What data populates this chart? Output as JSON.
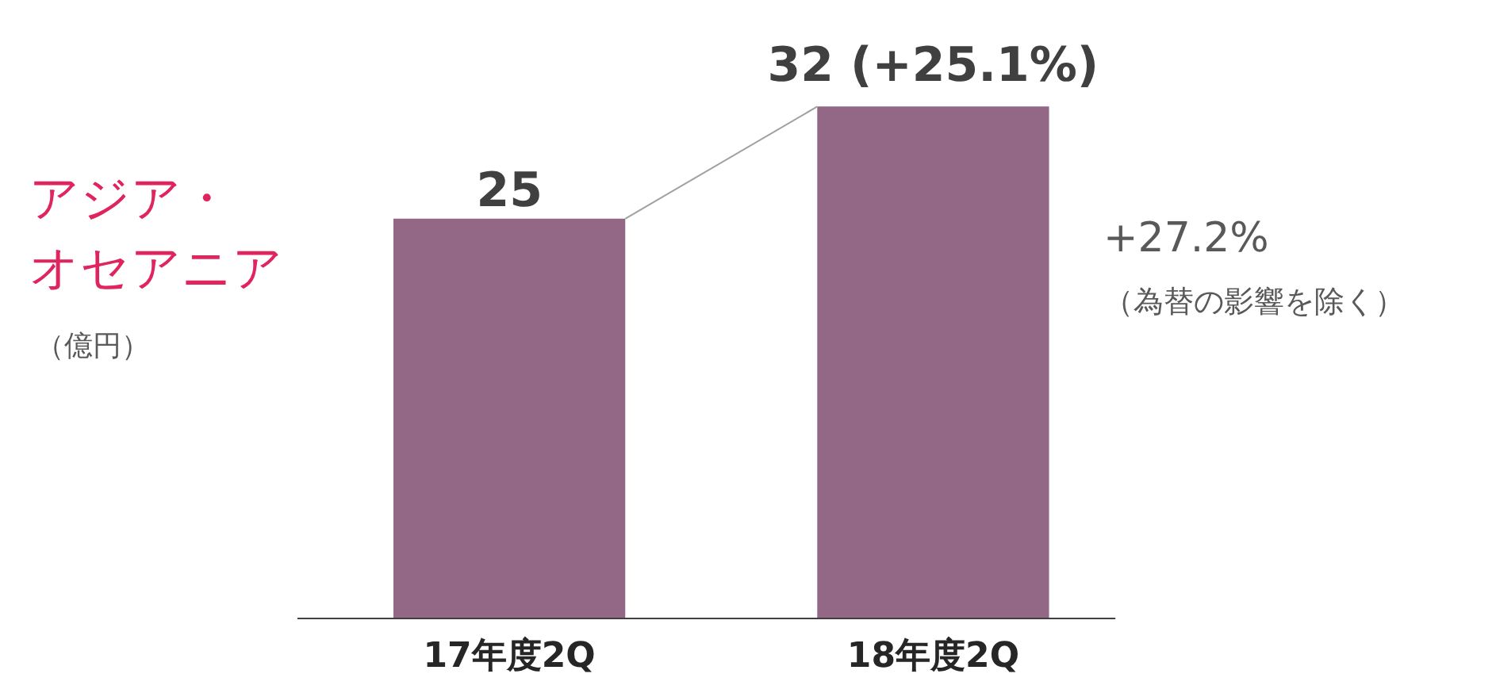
{
  "chart_data": {
    "type": "bar",
    "title": "アジア・オセアニア",
    "categories": [
      "17年度2Q",
      "18年度2Q"
    ],
    "values": [
      25,
      32
    ],
    "value_labels": [
      "25",
      "32 (+25.1%)"
    ],
    "color": "#936887",
    "annotations": [
      "（億円）",
      "+27.2%",
      "（為替の影響を除く）"
    ]
  }
}
